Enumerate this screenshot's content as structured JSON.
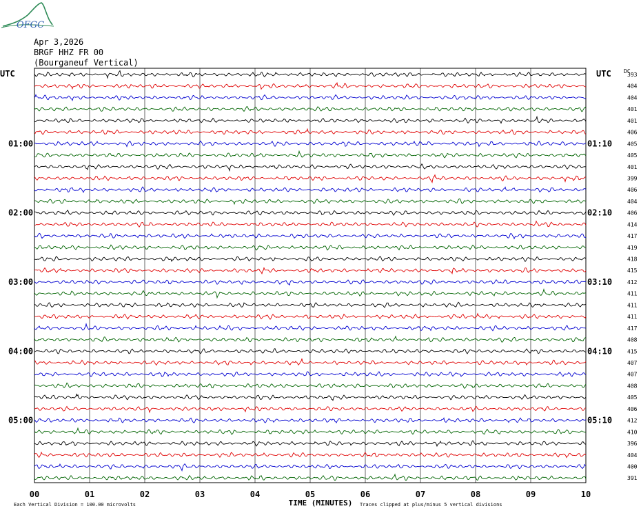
{
  "logo": {
    "text": "OFGC"
  },
  "header": {
    "date": "Apr 3,2026",
    "station": "BRGF HHZ FR 00",
    "location": "(Bourganeuf Vertical)"
  },
  "colors": {
    "trace_cycle": [
      "#000000",
      "#e00000",
      "#0000d0",
      "#006400"
    ],
    "grid": "#000000"
  },
  "chart_data": {
    "type": "line",
    "title": "",
    "left_axis_label": "UTC",
    "right_axis_label": "UTC",
    "dc_header": "DC",
    "xlabel": "TIME (MINUTES)",
    "x_ticks": [
      "00",
      "01",
      "02",
      "03",
      "04",
      "05",
      "06",
      "07",
      "08",
      "09",
      "10"
    ],
    "xlim": [
      0,
      10
    ],
    "left_hour_labels": [
      {
        "trace": 6,
        "text": "01:00"
      },
      {
        "trace": 12,
        "text": "02:00"
      },
      {
        "trace": 18,
        "text": "03:00"
      },
      {
        "trace": 24,
        "text": "04:00"
      },
      {
        "trace": 30,
        "text": "05:00"
      }
    ],
    "right_hour_labels": [
      {
        "trace": 6,
        "text": "01:10"
      },
      {
        "trace": 12,
        "text": "02:10"
      },
      {
        "trace": 18,
        "text": "03:10"
      },
      {
        "trace": 24,
        "text": "04:10"
      },
      {
        "trace": 30,
        "text": "05:10"
      }
    ],
    "dc_offsets": [
      393,
      404,
      404,
      401,
      401,
      406,
      405,
      405,
      401,
      399,
      406,
      404,
      406,
      414,
      417,
      419,
      418,
      415,
      412,
      411,
      411,
      411,
      417,
      408,
      415,
      407,
      407,
      408,
      405,
      406,
      412,
      410,
      396,
      404,
      400,
      391
    ],
    "notes": {
      "left": "Each Vertical Division =  100.00 microvolts",
      "right": "Traces clipped at plus/minus 5 vertical divisions"
    }
  }
}
